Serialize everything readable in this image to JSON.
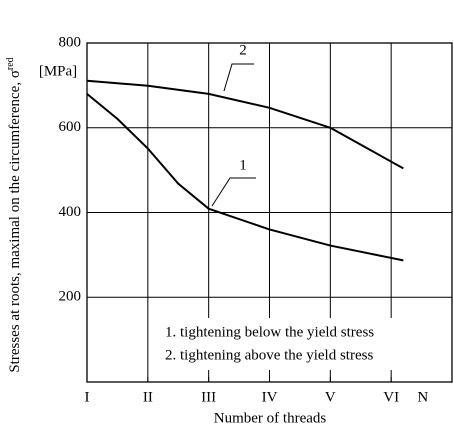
{
  "chart_data": {
    "type": "line",
    "y_label": "Stresses at roots, maximal on the circumference, σ",
    "y_label_subscript": "red",
    "y_unit": "[MPa]",
    "x_label": "Number of threads",
    "x_end_label": "N",
    "xlim": [
      1,
      7
    ],
    "xticks": [
      {
        "value": 1,
        "label": "I"
      },
      {
        "value": 2,
        "label": "II"
      },
      {
        "value": 3,
        "label": "III"
      },
      {
        "value": 4,
        "label": "IV"
      },
      {
        "value": 5,
        "label": "V"
      },
      {
        "value": 6,
        "label": "VI"
      }
    ],
    "ylim": [
      0,
      800
    ],
    "yticks": [
      200,
      400,
      600,
      800
    ],
    "grid": true,
    "series": [
      {
        "name": "1. tightening below the yield stress",
        "label": "1",
        "color": "#000000",
        "x": [
          1,
          1.5,
          2,
          2.5,
          3,
          4,
          5,
          6.2
        ],
        "values": [
          680,
          621,
          551,
          468,
          409,
          360,
          322,
          287
        ]
      },
      {
        "name": "2. tightening above the yield stress",
        "label": "2",
        "color": "#000000",
        "x": [
          1,
          2,
          3,
          4,
          5,
          6.2
        ],
        "values": [
          711,
          699,
          680,
          647,
          600,
          504
        ]
      }
    ]
  }
}
